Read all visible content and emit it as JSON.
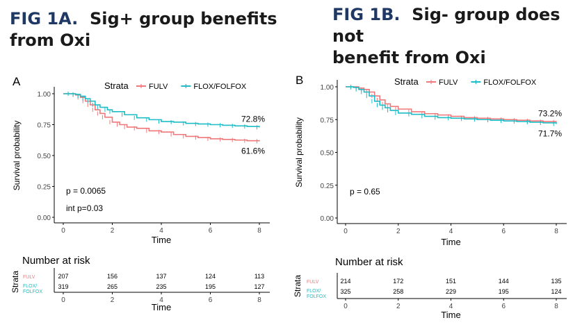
{
  "colors": {
    "fulv": "#F0787A",
    "flox": "#1CBDC6",
    "heading_tag": "#1f3864",
    "axis": "#000000"
  },
  "headings": {
    "a": {
      "tag": "FIG 1A.",
      "line1": "Sig+ group benefits",
      "line2": "from Oxi"
    },
    "b": {
      "tag": "FIG 1B.",
      "line1": "Sig- group does not",
      "line2": "benefit from Oxi"
    }
  },
  "chart_data": [
    {
      "type": "line",
      "panel_label": "A",
      "legend_title": "Strata",
      "legend_position": "top",
      "xlabel": "Time",
      "ylabel": "Survival probability",
      "xlim": [
        0,
        8
      ],
      "ylim": [
        0,
        1
      ],
      "x_ticks": [
        "0",
        "2",
        "4",
        "6",
        "8"
      ],
      "y_ticks": [
        "0.00",
        "0.25",
        "0.50",
        "0.75",
        "1.00"
      ],
      "grid": false,
      "series": [
        {
          "name": "FULV",
          "color": "#F0787A",
          "points": [
            [
              0,
              1.0
            ],
            [
              0.3,
              1.0
            ],
            [
              0.5,
              0.99
            ],
            [
              0.7,
              0.97
            ],
            [
              0.9,
              0.94
            ],
            [
              1.1,
              0.91
            ],
            [
              1.3,
              0.87
            ],
            [
              1.5,
              0.84
            ],
            [
              1.7,
              0.81
            ],
            [
              2.0,
              0.77
            ],
            [
              2.3,
              0.75
            ],
            [
              2.6,
              0.73
            ],
            [
              3.0,
              0.72
            ],
            [
              3.5,
              0.7
            ],
            [
              4.0,
              0.69
            ],
            [
              4.5,
              0.67
            ],
            [
              5.0,
              0.655
            ],
            [
              5.5,
              0.645
            ],
            [
              6.0,
              0.635
            ],
            [
              6.5,
              0.63
            ],
            [
              7.0,
              0.625
            ],
            [
              7.5,
              0.62
            ],
            [
              8.0,
              0.616
            ]
          ],
          "end_label": "61.6%"
        },
        {
          "name": "FLOX/FOLFOX",
          "color": "#1CBDC6",
          "points": [
            [
              0,
              1.0
            ],
            [
              0.3,
              1.0
            ],
            [
              0.5,
              0.995
            ],
            [
              0.7,
              0.98
            ],
            [
              0.9,
              0.96
            ],
            [
              1.1,
              0.94
            ],
            [
              1.3,
              0.91
            ],
            [
              1.5,
              0.89
            ],
            [
              1.8,
              0.87
            ],
            [
              2.0,
              0.855
            ],
            [
              2.5,
              0.83
            ],
            [
              3.0,
              0.805
            ],
            [
              3.5,
              0.79
            ],
            [
              4.0,
              0.775
            ],
            [
              4.5,
              0.77
            ],
            [
              5.0,
              0.76
            ],
            [
              5.5,
              0.755
            ],
            [
              6.0,
              0.75
            ],
            [
              6.5,
              0.745
            ],
            [
              7.0,
              0.74
            ],
            [
              7.5,
              0.735
            ],
            [
              8.0,
              0.728
            ]
          ],
          "end_label": "72.8%"
        }
      ],
      "annotations": [
        "p = 0.0065",
        "int p=0.03"
      ],
      "risk_table": {
        "title": "Number at risk",
        "ylabel": "Strata",
        "xlabel": "Time",
        "times": [
          "0",
          "2",
          "4",
          "6",
          "8"
        ],
        "rows": [
          {
            "label": "FULV",
            "color": "#F0787A",
            "values": [
              "207",
              "156",
              "137",
              "124",
              "113"
            ]
          },
          {
            "label": "FLOX/\nFOLFOX",
            "color": "#1CBDC6",
            "values": [
              "319",
              "265",
              "235",
              "195",
              "127"
            ]
          }
        ]
      }
    },
    {
      "type": "line",
      "panel_label": "B",
      "legend_title": "Strata",
      "legend_position": "top",
      "xlabel": "Time",
      "ylabel": "Survival probability",
      "xlim": [
        0,
        8
      ],
      "ylim": [
        0,
        1
      ],
      "x_ticks": [
        "0",
        "2",
        "4",
        "6",
        "8"
      ],
      "y_ticks": [
        "0.00",
        "0.25",
        "0.50",
        "0.75",
        "1.00"
      ],
      "grid": false,
      "series": [
        {
          "name": "FULV",
          "color": "#F0787A",
          "points": [
            [
              0,
              1.0
            ],
            [
              0.3,
              1.0
            ],
            [
              0.5,
              0.99
            ],
            [
              0.7,
              0.98
            ],
            [
              0.9,
              0.96
            ],
            [
              1.1,
              0.93
            ],
            [
              1.3,
              0.9
            ],
            [
              1.5,
              0.87
            ],
            [
              1.7,
              0.85
            ],
            [
              2.0,
              0.83
            ],
            [
              2.5,
              0.81
            ],
            [
              3.0,
              0.795
            ],
            [
              3.5,
              0.785
            ],
            [
              4.0,
              0.775
            ],
            [
              4.5,
              0.765
            ],
            [
              5.0,
              0.76
            ],
            [
              5.5,
              0.755
            ],
            [
              6.0,
              0.75
            ],
            [
              6.5,
              0.745
            ],
            [
              7.0,
              0.74
            ],
            [
              7.5,
              0.735
            ],
            [
              8.0,
              0.732
            ]
          ],
          "end_label": "73.2%"
        },
        {
          "name": "FLOX/FOLFOX",
          "color": "#1CBDC6",
          "points": [
            [
              0,
              1.0
            ],
            [
              0.3,
              0.995
            ],
            [
              0.5,
              0.98
            ],
            [
              0.7,
              0.96
            ],
            [
              0.9,
              0.93
            ],
            [
              1.1,
              0.89
            ],
            [
              1.3,
              0.86
            ],
            [
              1.5,
              0.84
            ],
            [
              1.7,
              0.82
            ],
            [
              2.0,
              0.8
            ],
            [
              2.5,
              0.79
            ],
            [
              3.0,
              0.775
            ],
            [
              3.5,
              0.765
            ],
            [
              4.0,
              0.76
            ],
            [
              4.5,
              0.755
            ],
            [
              5.0,
              0.75
            ],
            [
              5.5,
              0.745
            ],
            [
              6.0,
              0.74
            ],
            [
              6.5,
              0.735
            ],
            [
              7.0,
              0.73
            ],
            [
              7.5,
              0.725
            ],
            [
              8.0,
              0.717
            ]
          ],
          "end_label": "71.7%"
        }
      ],
      "annotations": [
        "p = 0.65"
      ],
      "risk_table": {
        "title": "Number at risk",
        "ylabel": "Strata",
        "xlabel": "Time",
        "times": [
          "0",
          "2",
          "4",
          "6",
          "8"
        ],
        "rows": [
          {
            "label": "FULV",
            "color": "#F0787A",
            "values": [
              "214",
              "172",
              "151",
              "144",
              "135"
            ]
          },
          {
            "label": "FLOX/\nFOLFOX",
            "color": "#1CBDC6",
            "values": [
              "325",
              "258",
              "229",
              "195",
              "124"
            ]
          }
        ]
      }
    }
  ]
}
